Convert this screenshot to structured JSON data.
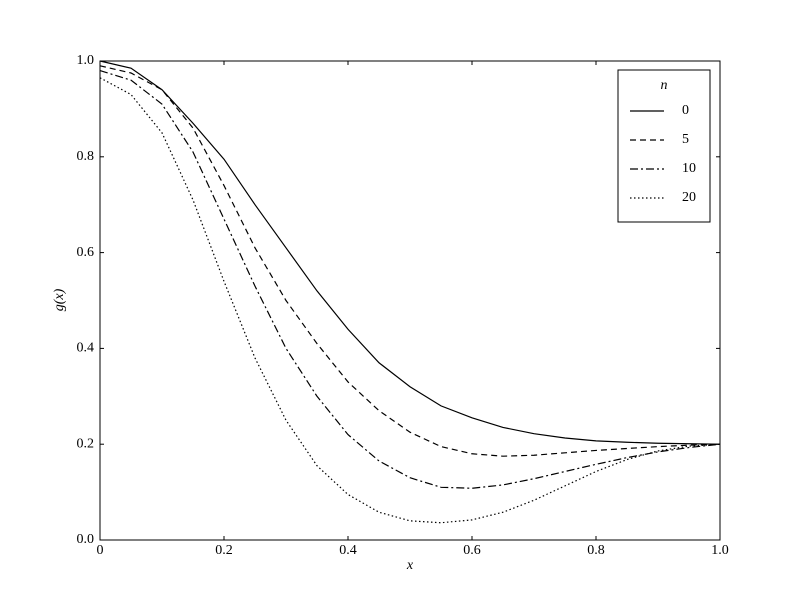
{
  "chart_data": {
    "type": "line",
    "x_label": "x",
    "y_label": "g(x)",
    "legend_title": "n",
    "legend": "upper right",
    "x": [
      0,
      0.05,
      0.1,
      0.15,
      0.2,
      0.25,
      0.3,
      0.35,
      0.4,
      0.45,
      0.5,
      0.55,
      0.6,
      0.65,
      0.7,
      0.75,
      0.8,
      0.85,
      0.9,
      0.95,
      1.0
    ],
    "series": [
      {
        "name": "0",
        "color": "#000000",
        "linestyle": "solid",
        "values": [
          1.0,
          0.985,
          0.94,
          0.87,
          0.795,
          0.7,
          0.61,
          0.52,
          0.44,
          0.37,
          0.32,
          0.28,
          0.255,
          0.235,
          0.222,
          0.213,
          0.207,
          0.204,
          0.202,
          0.201,
          0.2
        ]
      },
      {
        "name": "5",
        "color": "#000000",
        "linestyle": "dashed",
        "values": [
          0.99,
          0.975,
          0.94,
          0.86,
          0.74,
          0.61,
          0.5,
          0.41,
          0.33,
          0.27,
          0.225,
          0.195,
          0.18,
          0.175,
          0.177,
          0.182,
          0.187,
          0.191,
          0.195,
          0.198,
          0.2
        ]
      },
      {
        "name": "10",
        "color": "#000000",
        "linestyle": "dashdot",
        "values": [
          0.98,
          0.96,
          0.91,
          0.81,
          0.67,
          0.53,
          0.4,
          0.3,
          0.22,
          0.165,
          0.13,
          0.11,
          0.108,
          0.115,
          0.128,
          0.143,
          0.158,
          0.172,
          0.184,
          0.193,
          0.2
        ]
      },
      {
        "name": "20",
        "color": "#000000",
        "linestyle": "dotted",
        "values": [
          0.965,
          0.93,
          0.85,
          0.71,
          0.54,
          0.38,
          0.25,
          0.155,
          0.095,
          0.058,
          0.04,
          0.036,
          0.042,
          0.058,
          0.083,
          0.113,
          0.143,
          0.168,
          0.186,
          0.196,
          0.2
        ]
      }
    ],
    "xlim": [
      0,
      1.0
    ],
    "ylim": [
      0,
      1.0
    ],
    "xticks": [
      {
        "value": 0,
        "label": "0"
      },
      0.2,
      0.4,
      0.6,
      0.8,
      {
        "value": 1,
        "label": "1.0"
      }
    ],
    "yticks": [
      {
        "value": 0,
        "label": "0.0"
      },
      0.2,
      0.4,
      0.6,
      0.8,
      {
        "value": 1,
        "label": "1.0"
      }
    ],
    "grid": false
  }
}
